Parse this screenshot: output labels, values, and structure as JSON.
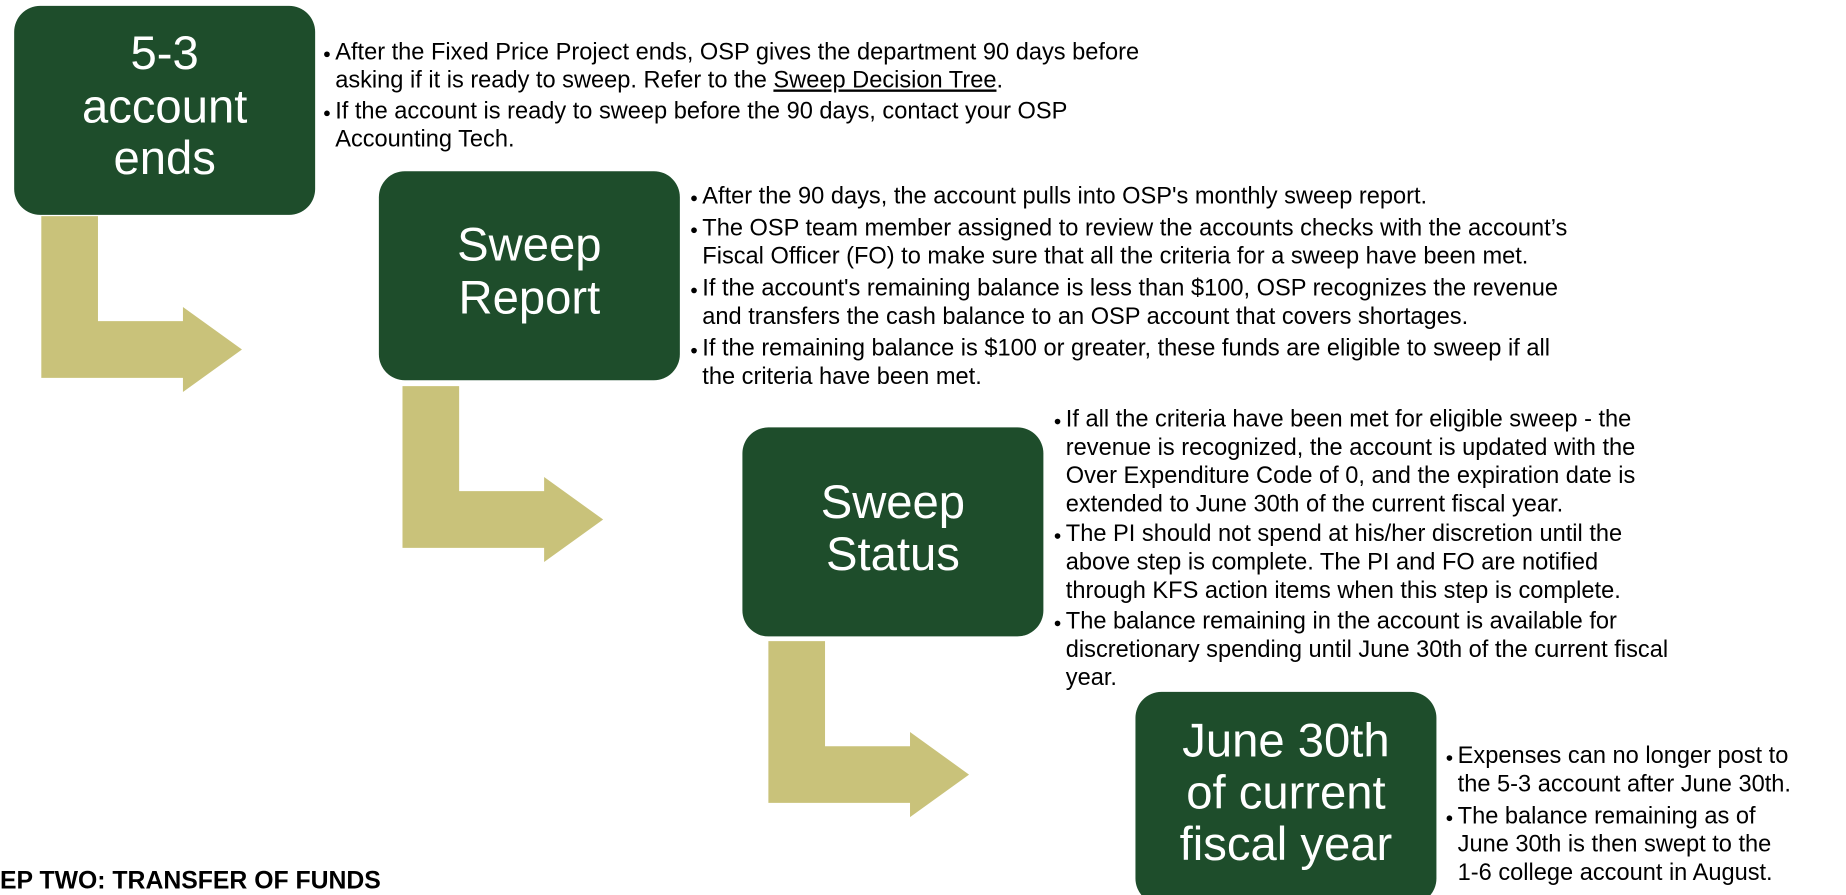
{
  "steps": [
    {
      "title_lines": [
        "5-3",
        "account",
        "ends"
      ],
      "bullets": [
        [
          "After the Fixed Price Project ends, OSP gives the department 90 days before",
          {
            "before": "asking if it is ready to sweep. Refer to the ",
            "link": "Sweep Decision Tree",
            "after": "."
          }
        ],
        [
          "If the account is ready to sweep before the 90 days, contact your OSP",
          "Accounting Tech."
        ]
      ]
    },
    {
      "title_lines": [
        "Sweep",
        "Report"
      ],
      "bullets": [
        [
          "After the 90 days, the account pulls into OSP's monthly sweep report."
        ],
        [
          "The OSP team member assigned to review the accounts checks with the account’s",
          "Fiscal Officer (FO) to make sure that all the criteria for a sweep have been met."
        ],
        [
          "If the account's remaining balance is less than $100, OSP recognizes the revenue",
          "and transfers the cash balance to an OSP account that covers shortages."
        ],
        [
          "If the remaining balance is $100 or greater, these funds are eligible to sweep if all",
          "the criteria have been met."
        ]
      ]
    },
    {
      "title_lines": [
        "Sweep",
        "Status"
      ],
      "bullets": [
        [
          "If all the criteria have been met for eligible sweep - the",
          "revenue is recognized, the account is updated with the",
          "Over Expenditure Code of 0, and the expiration date is",
          "extended to June 30th of the current fiscal year."
        ],
        [
          "The PI should not spend at his/her discretion until the",
          "above step is complete. The PI and FO are notified",
          "through KFS action items when this step is complete."
        ],
        [
          "The balance remaining in the account is available for",
          "discretionary spending until June 30th of the current fiscal",
          "year."
        ]
      ]
    },
    {
      "title_lines": [
        "June 30th",
        "of current",
        "fiscal year"
      ],
      "bullets": [
        [
          "Expenses can no longer post to",
          "the 5-3 account after June 30th."
        ],
        [
          "The balance remaining as of",
          "June 30th is then swept to the",
          "1-6 college account in August."
        ]
      ]
    }
  ],
  "footer": "EP TWO: TRANSFER OF FUNDS"
}
